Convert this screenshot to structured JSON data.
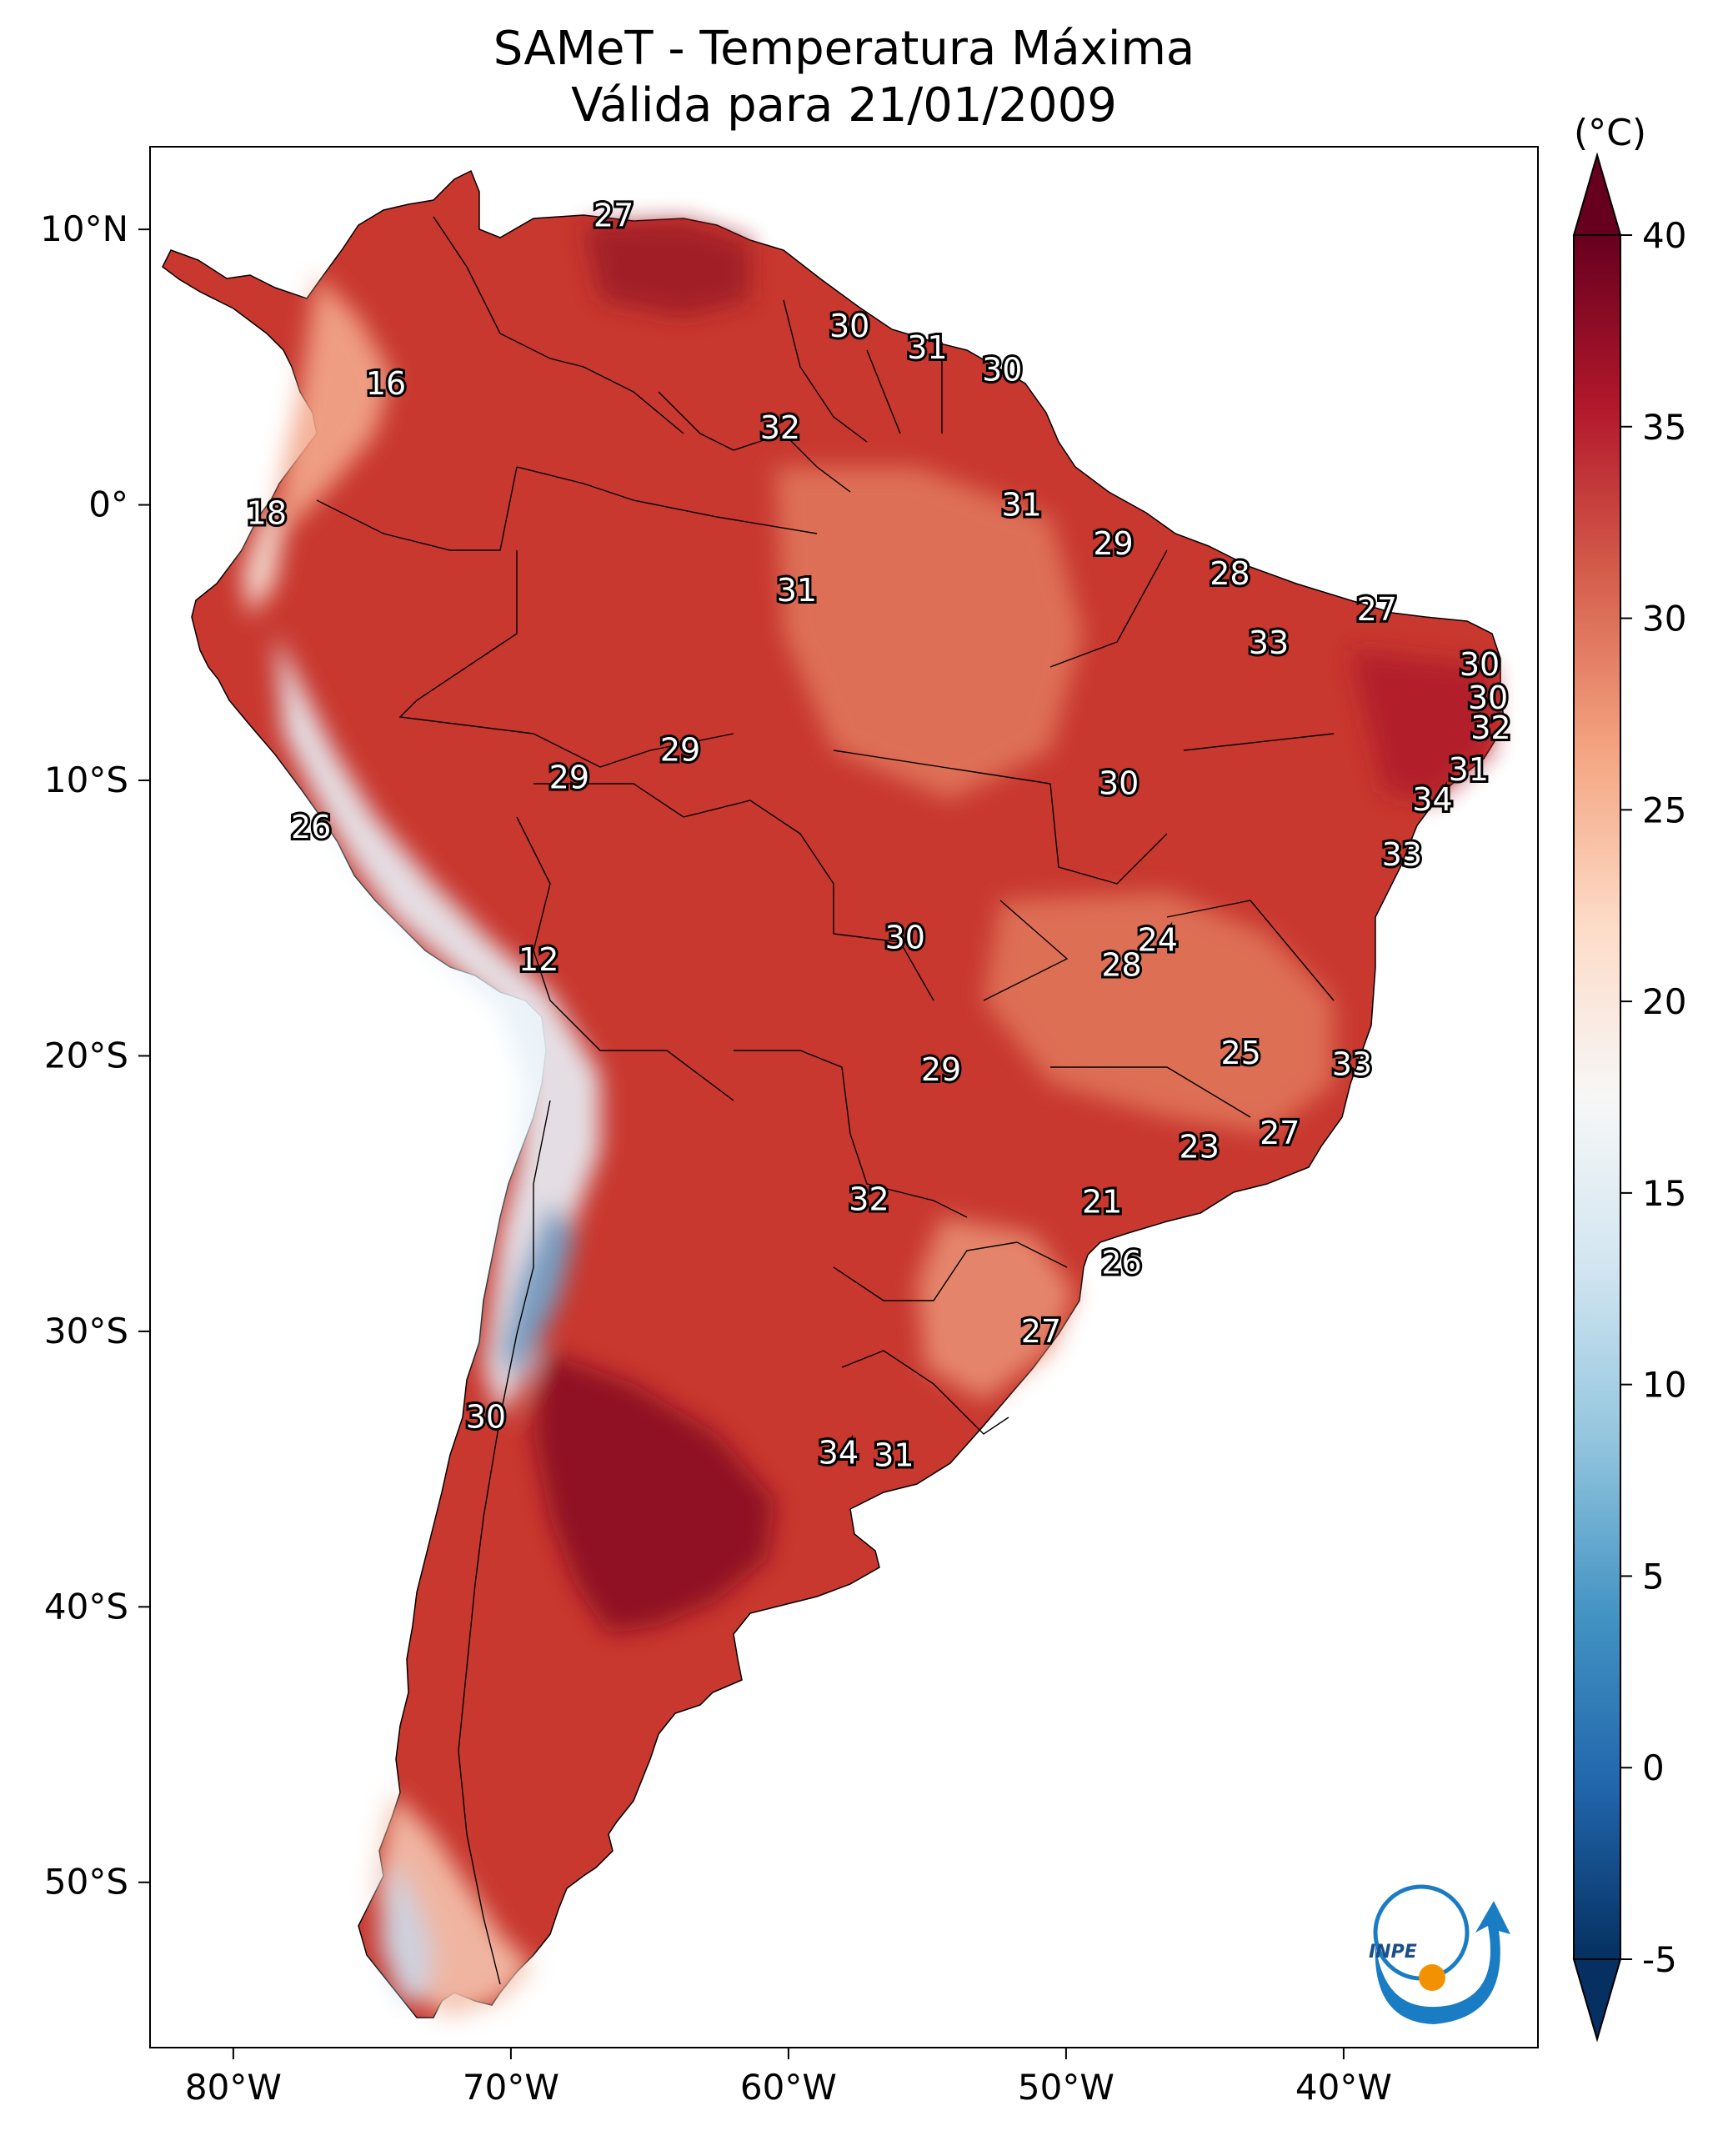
{
  "title": {
    "line1": "SAMeT - Temperatura Máxima",
    "line2": "Válida para 21/01/2009"
  },
  "map": {
    "lon_range": [
      -83,
      -33
    ],
    "lat_range": [
      -56,
      13
    ],
    "x_ticks": [
      {
        "lon": -80,
        "label": "80°W"
      },
      {
        "lon": -70,
        "label": "70°W"
      },
      {
        "lon": -60,
        "label": "60°W"
      },
      {
        "lon": -50,
        "label": "50°W"
      },
      {
        "lon": -40,
        "label": "40°W"
      }
    ],
    "y_ticks": [
      {
        "lat": 10,
        "label": "10°N"
      },
      {
        "lat": 0,
        "label": "0°"
      },
      {
        "lat": -10,
        "label": "10°S"
      },
      {
        "lat": -20,
        "label": "20°S"
      },
      {
        "lat": -30,
        "label": "30°S"
      },
      {
        "lat": -40,
        "label": "40°S"
      },
      {
        "lat": -50,
        "label": "50°S"
      }
    ],
    "ocean_color": "#ffffff",
    "land_color": "#c8382f",
    "border_color": "#000000"
  },
  "labels": [
    {
      "lon": -66.3,
      "lat": 10.5,
      "text": "27"
    },
    {
      "lon": -74.5,
      "lat": 4.4,
      "text": "16"
    },
    {
      "lon": -78.8,
      "lat": -0.3,
      "text": "18"
    },
    {
      "lon": -57.8,
      "lat": 6.5,
      "text": "30"
    },
    {
      "lon": -55.0,
      "lat": 5.7,
      "text": "31"
    },
    {
      "lon": -52.3,
      "lat": 4.9,
      "text": "30"
    },
    {
      "lon": -60.3,
      "lat": 2.8,
      "text": "32"
    },
    {
      "lon": -51.6,
      "lat": 0.0,
      "text": "31"
    },
    {
      "lon": -59.7,
      "lat": -3.1,
      "text": "31"
    },
    {
      "lon": -48.3,
      "lat": -1.4,
      "text": "29"
    },
    {
      "lon": -44.1,
      "lat": -2.5,
      "text": "28"
    },
    {
      "lon": -38.8,
      "lat": -3.8,
      "text": "27"
    },
    {
      "lon": -42.7,
      "lat": -5.0,
      "text": "33"
    },
    {
      "lon": -35.1,
      "lat": -5.8,
      "text": "30"
    },
    {
      "lon": -34.8,
      "lat": -7.0,
      "text": "30"
    },
    {
      "lon": -34.7,
      "lat": -8.1,
      "text": "32"
    },
    {
      "lon": -35.5,
      "lat": -9.6,
      "text": "31"
    },
    {
      "lon": -36.8,
      "lat": -10.7,
      "text": "34"
    },
    {
      "lon": -37.9,
      "lat": -12.7,
      "text": "33"
    },
    {
      "lon": -63.9,
      "lat": -8.9,
      "text": "29"
    },
    {
      "lon": -67.9,
      "lat": -9.9,
      "text": "29"
    },
    {
      "lon": -48.1,
      "lat": -10.1,
      "text": "30"
    },
    {
      "lon": -77.2,
      "lat": -11.7,
      "text": "26"
    },
    {
      "lon": -55.8,
      "lat": -15.7,
      "text": "30"
    },
    {
      "lon": -46.7,
      "lat": -15.8,
      "text": "24"
    },
    {
      "lon": -48.0,
      "lat": -16.7,
      "text": "28"
    },
    {
      "lon": -69.0,
      "lat": -16.5,
      "text": "12"
    },
    {
      "lon": -43.7,
      "lat": -19.9,
      "text": "25"
    },
    {
      "lon": -39.7,
      "lat": -20.3,
      "text": "33"
    },
    {
      "lon": -54.5,
      "lat": -20.5,
      "text": "29"
    },
    {
      "lon": -42.3,
      "lat": -22.8,
      "text": "27"
    },
    {
      "lon": -45.2,
      "lat": -23.3,
      "text": "23"
    },
    {
      "lon": -57.1,
      "lat": -25.2,
      "text": "32"
    },
    {
      "lon": -48.7,
      "lat": -25.3,
      "text": "21"
    },
    {
      "lon": -48.0,
      "lat": -27.5,
      "text": "26"
    },
    {
      "lon": -50.9,
      "lat": -30.0,
      "text": "27"
    },
    {
      "lon": -70.9,
      "lat": -33.1,
      "text": "30"
    },
    {
      "lon": -58.2,
      "lat": -34.4,
      "text": "34"
    },
    {
      "lon": -56.2,
      "lat": -34.5,
      "text": "31"
    }
  ],
  "colorbar": {
    "unit_label": "(°C)",
    "min": -5,
    "max": 40,
    "ticks": [
      {
        "value": 40,
        "label": "40"
      },
      {
        "value": 35,
        "label": "35"
      },
      {
        "value": 30,
        "label": "30"
      },
      {
        "value": 25,
        "label": "25"
      },
      {
        "value": 20,
        "label": "20"
      },
      {
        "value": 15,
        "label": "15"
      },
      {
        "value": 10,
        "label": "10"
      },
      {
        "value": 5,
        "label": "5"
      },
      {
        "value": 0,
        "label": "0"
      },
      {
        "value": -5,
        "label": "-5"
      }
    ],
    "colors": [
      "#053061",
      "#2166ac",
      "#4393c3",
      "#92c5de",
      "#d1e5f0",
      "#f7f7f7",
      "#fddbc7",
      "#f4a582",
      "#d6604d",
      "#b2182b",
      "#67001f"
    ]
  },
  "logo": {
    "text": "INPE",
    "blue": "#1a7cc2",
    "orange": "#f39200"
  }
}
